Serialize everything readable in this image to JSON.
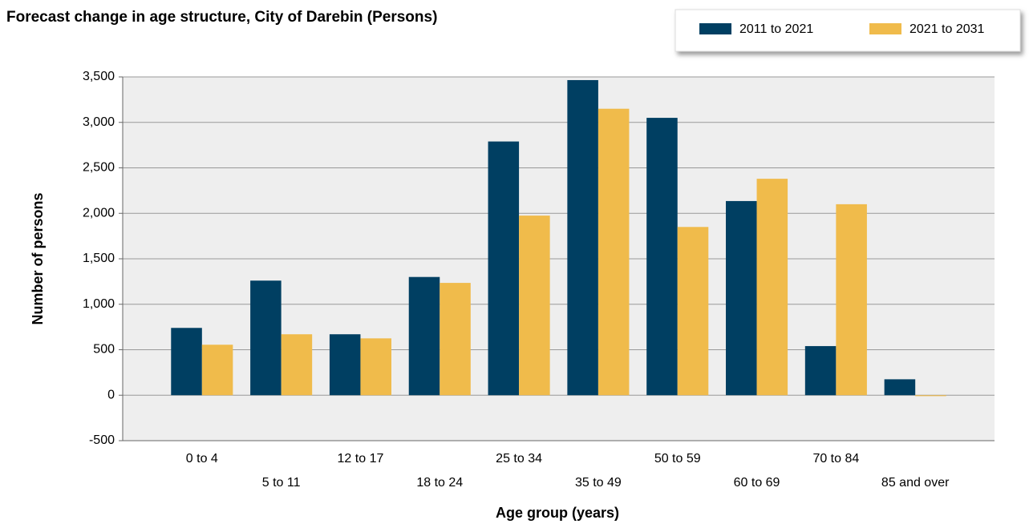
{
  "chart_data": {
    "type": "bar",
    "title": "Forecast change in age structure, City of Darebin (Persons)",
    "x_label": "Age group (years)",
    "y_label": "Number of persons",
    "categories": [
      "0 to 4",
      "5 to 11",
      "12 to 17",
      "18 to 24",
      "25 to 34",
      "35 to 49",
      "50 to 59",
      "60 to 69",
      "70 to 84",
      "85 and over"
    ],
    "series": [
      {
        "name": "2011 to 2021",
        "color": "#003f62",
        "values": [
          740,
          1260,
          670,
          1300,
          2790,
          3465,
          3050,
          2135,
          540,
          175
        ]
      },
      {
        "name": "2021 to 2031",
        "color": "#f0bb4b",
        "values": [
          555,
          670,
          625,
          1235,
          1975,
          3150,
          1850,
          2380,
          2100,
          -10
        ]
      }
    ],
    "ylim": [
      -500,
      3500
    ],
    "yticks": [
      {
        "value": -500,
        "label": "-500"
      },
      0,
      500,
      {
        "value": 1000,
        "label": "1,000"
      },
      {
        "value": 1500,
        "label": "1,500"
      },
      {
        "value": 2000,
        "label": "2,000"
      },
      {
        "value": 2500,
        "label": "2,500"
      },
      {
        "value": 3000,
        "label": "3,000"
      },
      {
        "value": 3500,
        "label": "3,500"
      }
    ],
    "grid": true,
    "legend": "top-right"
  }
}
